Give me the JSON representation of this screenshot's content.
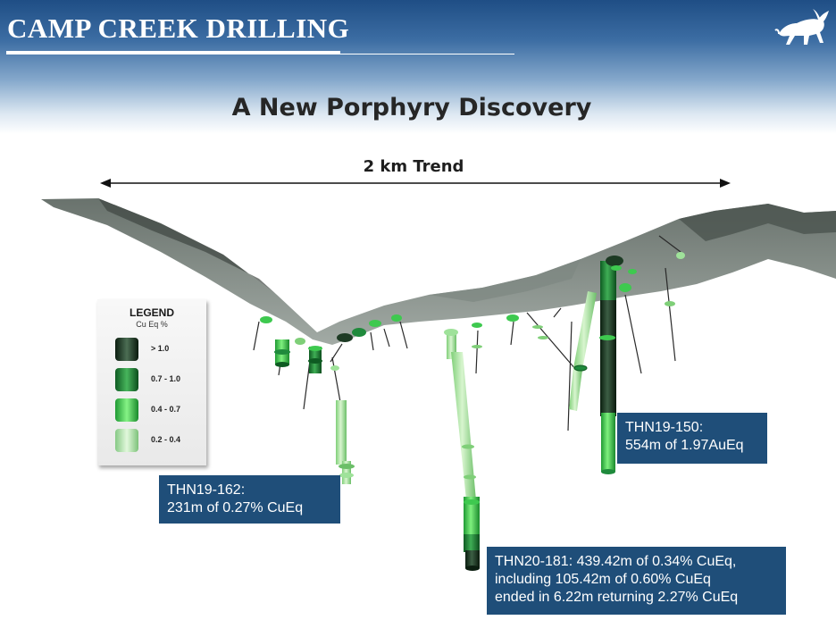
{
  "header": {
    "company_title": "CAMP CREEK DRILLING",
    "logo_icon": "charging-bull-logo-icon"
  },
  "slide": {
    "title": "A New Porphyry Discovery",
    "trend_label": "2 km Trend"
  },
  "legend": {
    "title": "LEGEND",
    "subtitle": "Cu Eq %",
    "items": [
      {
        "label": "> 1.0",
        "color": "#1d3b24"
      },
      {
        "label": "0.7 - 1.0",
        "color": "#1f8a3c"
      },
      {
        "label": "0.4 - 0.7",
        "color": "#3ec94f"
      },
      {
        "label": "0.2 - 0.4",
        "color": "#9fe29a"
      }
    ]
  },
  "callouts": {
    "thn19_150": {
      "lines": [
        "THN19-150:",
        "554m of 1.97AuEq"
      ]
    },
    "thn19_162": {
      "lines": [
        "THN19-162:",
        "231m of 0.27% CuEq"
      ]
    },
    "thn20_181": {
      "lines": [
        "THN20-181: 439.42m of 0.34% CuEq,",
        "including 105.42m of 0.60% CuEq",
        "ended in 6.22m returning 2.27% CuEq"
      ]
    }
  },
  "colors": {
    "header_dark": "#1f4e85",
    "callout_bg": "#1f4e79",
    "terrain": "#6f7a72"
  }
}
